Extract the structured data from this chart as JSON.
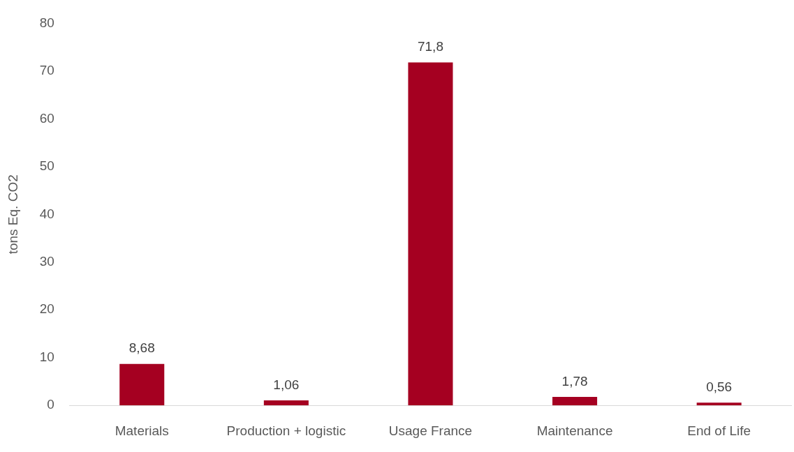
{
  "chart_data": {
    "type": "bar",
    "ylabel": "tons Eq. CO2",
    "categories": [
      "Materials",
      "Production + logistic",
      "Usage France",
      "Maintenance",
      "End of Life"
    ],
    "values": [
      8.68,
      1.06,
      71.8,
      1.78,
      0.56
    ],
    "value_labels": [
      "8,68",
      "1,06",
      "71,8",
      "1,78",
      "0,56"
    ],
    "color": "#a50021",
    "ylim": [
      0,
      80
    ],
    "yticks": [
      0,
      10,
      20,
      30,
      40,
      50,
      60,
      70,
      80
    ]
  }
}
